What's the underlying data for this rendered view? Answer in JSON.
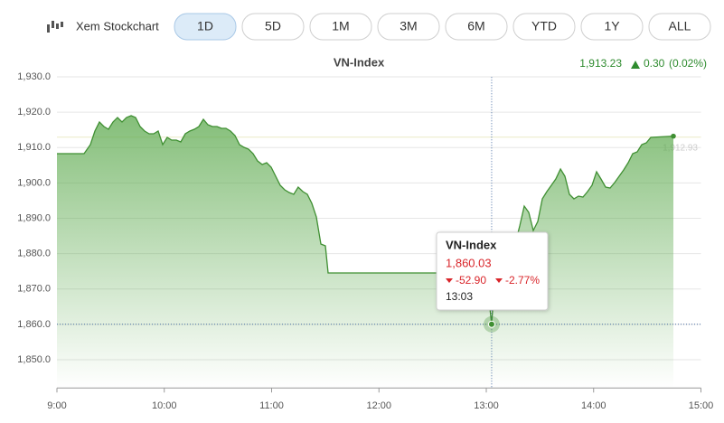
{
  "toolbar": {
    "link": "Xem Stockchart",
    "ranges": [
      "1D",
      "5D",
      "1M",
      "3M",
      "6M",
      "YTD",
      "1Y",
      "ALL"
    ],
    "active": "1D"
  },
  "chart_data": {
    "type": "area",
    "title": "VN-Index",
    "last": "1,913.23",
    "change": "0.30",
    "change_pct": "(0.02%)",
    "x": [
      9,
      9.253,
      9.312,
      9.354,
      9.396,
      9.438,
      9.48,
      9.522,
      9.564,
      9.606,
      9.648,
      9.691,
      9.733,
      9.775,
      9.817,
      9.859,
      9.901,
      9.943,
      9.985,
      10.027,
      10.069,
      10.112,
      10.154,
      10.196,
      10.238,
      10.28,
      10.322,
      10.364,
      10.406,
      10.448,
      10.491,
      10.533,
      10.575,
      10.617,
      10.659,
      10.701,
      10.743,
      10.785,
      10.827,
      10.869,
      10.912,
      10.954,
      10.996,
      11.038,
      11.08,
      11.122,
      11.164,
      11.206,
      11.248,
      11.291,
      11.333,
      11.375,
      11.417,
      11.459,
      11.501,
      11.526,
      13,
      13.05,
      13.084,
      13.143,
      13.185,
      13.227,
      13.269,
      13.312,
      13.354,
      13.396,
      13.438,
      13.48,
      13.522,
      13.564,
      13.606,
      13.648,
      13.691,
      13.733,
      13.775,
      13.817,
      13.859,
      13.901,
      13.943,
      13.985,
      14.027,
      14.069,
      14.112,
      14.154,
      14.196,
      14.238,
      14.28,
      14.322,
      14.364,
      14.406,
      14.448,
      14.491,
      14.533,
      14.743
    ],
    "series": [
      {
        "name": "VN-Index",
        "color": "#3f8f32",
        "values": [
          1908.27,
          1908.27,
          1910.83,
          1914.67,
          1917.22,
          1915.94,
          1915.18,
          1917.22,
          1918.5,
          1917.22,
          1918.5,
          1919.01,
          1918.5,
          1915.94,
          1914.67,
          1913.9,
          1913.9,
          1914.67,
          1910.83,
          1912.88,
          1912.11,
          1912.11,
          1911.6,
          1913.9,
          1914.67,
          1915.18,
          1915.94,
          1917.99,
          1916.45,
          1915.94,
          1915.94,
          1915.43,
          1915.43,
          1914.67,
          1913.39,
          1910.83,
          1910.06,
          1909.55,
          1908.27,
          1906.23,
          1905.21,
          1905.72,
          1904.44,
          1901.88,
          1899.33,
          1898.05,
          1897.28,
          1896.77,
          1898.82,
          1897.54,
          1896.77,
          1894.22,
          1890.38,
          1882.72,
          1882.2,
          1874.54,
          1874.54,
          1860.03,
          1875.05,
          1877.6,
          1878.88,
          1880.67,
          1882.72,
          1887.83,
          1893.45,
          1891.66,
          1886.55,
          1889.11,
          1895.5,
          1897.54,
          1899.33,
          1901.12,
          1903.93,
          1901.88,
          1896.77,
          1895.5,
          1896.26,
          1896.01,
          1897.54,
          1899.33,
          1903.16,
          1901.12,
          1898.82,
          1898.56,
          1900.1,
          1901.88,
          1903.67,
          1905.72,
          1908.27,
          1908.79,
          1910.83,
          1911.34,
          1912.88,
          1913.23
        ]
      }
    ],
    "xlim": [
      9,
      15
    ],
    "xticks": [
      {
        "value": 9,
        "label": "9:00"
      },
      {
        "value": 10,
        "label": "10:00"
      },
      {
        "value": 11,
        "label": "11:00"
      },
      {
        "value": 12,
        "label": "12:00"
      },
      {
        "value": 13,
        "label": "13:00"
      },
      {
        "value": 14,
        "label": "14:00"
      },
      {
        "value": 15,
        "label": "15:00"
      }
    ],
    "ylim": [
      1842,
      1932
    ],
    "yticks": [
      {
        "value": 1850,
        "label": "1,850.0"
      },
      {
        "value": 1860,
        "label": "1,860.0"
      },
      {
        "value": 1870,
        "label": "1,870.0"
      },
      {
        "value": 1880,
        "label": "1,880.0"
      },
      {
        "value": 1890,
        "label": "1,890.0"
      },
      {
        "value": 1900,
        "label": "1,900.0"
      },
      {
        "value": 1910,
        "label": "1,910.0"
      },
      {
        "value": 1920,
        "label": "1,920.0"
      },
      {
        "value": 1930,
        "label": "1,930.0"
      }
    ],
    "grid": true,
    "reference": {
      "value": 1912.93,
      "label": "1,912.93"
    },
    "tooltip": {
      "value": "1,860.03",
      "change": "-52.90",
      "change_pct": "-2.77%",
      "time": "13:03"
    }
  }
}
